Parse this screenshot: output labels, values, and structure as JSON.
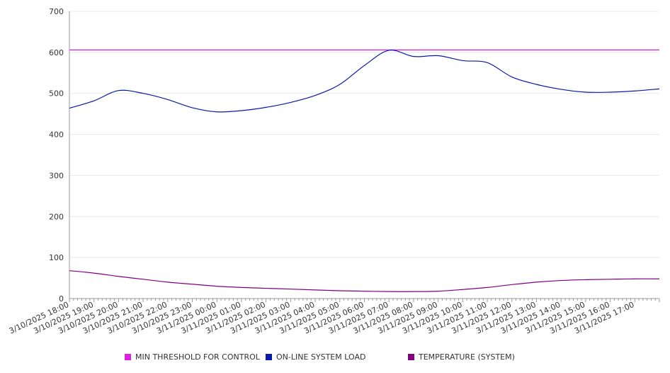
{
  "chart_data": {
    "type": "line",
    "title": "",
    "xlabel": "",
    "ylabel": "",
    "ylim": [
      0,
      700
    ],
    "y_ticks": [
      0,
      100,
      200,
      300,
      400,
      500,
      600,
      700
    ],
    "x_range": [
      "3/10/2025 18:00",
      "3/11/2025 18:00"
    ],
    "x_tick_labels": [
      "3/10/2025 18:00",
      "3/10/2025 19:00",
      "3/10/2025 20:00",
      "3/10/2025 21:00",
      "3/10/2025 22:00",
      "3/10/2025 23:00",
      "3/11/2025 00:00",
      "3/11/2025 01:00",
      "3/11/2025 02:00",
      "3/11/2025 03:00",
      "3/11/2025 04:00",
      "3/11/2025 05:00",
      "3/11/2025 06:00",
      "3/11/2025 07:00",
      "3/11/2025 08:00",
      "3/11/2025 09:00",
      "3/11/2025 10:00",
      "3/11/2025 11:00",
      "3/11/2025 12:00",
      "3/11/2025 13:00",
      "3/11/2025 14:00",
      "3/11/2025 15:00",
      "3/11/2025 16:00",
      "3/11/2025 17:00"
    ],
    "grid": true,
    "legend_position": "bottom",
    "x": [
      "3/10/2025 18:00",
      "3/10/2025 19:00",
      "3/10/2025 20:00",
      "3/10/2025 21:00",
      "3/10/2025 22:00",
      "3/10/2025 23:00",
      "3/11/2025 00:00",
      "3/11/2025 01:00",
      "3/11/2025 02:00",
      "3/11/2025 03:00",
      "3/11/2025 04:00",
      "3/11/2025 05:00",
      "3/11/2025 06:00",
      "3/11/2025 07:00",
      "3/11/2025 08:00",
      "3/11/2025 09:00",
      "3/11/2025 10:00",
      "3/11/2025 11:00",
      "3/11/2025 12:00",
      "3/11/2025 13:00",
      "3/11/2025 14:00",
      "3/11/2025 15:00",
      "3/11/2025 16:00",
      "3/11/2025 17:00",
      "3/11/2025 18:00"
    ],
    "series": [
      {
        "name": "MIN THRESHOLD FOR CONTROL",
        "color": "#e020e0",
        "values": [
          606,
          606,
          606,
          606,
          606,
          606,
          606,
          606,
          606,
          606,
          606,
          606,
          606,
          606,
          606,
          606,
          606,
          606,
          606,
          606,
          606,
          606,
          606,
          606,
          606
        ]
      },
      {
        "name": "ON-LINE SYSTEM LOAD",
        "color": "#0a1aa8",
        "values": [
          464,
          482,
          507,
          500,
          485,
          465,
          455,
          458,
          466,
          478,
          495,
          522,
          568,
          605,
          590,
          592,
          580,
          575,
          540,
          522,
          510,
          503,
          503,
          506,
          511
        ]
      },
      {
        "name": "TEMPERATURE (SYSTEM)",
        "color": "#800080",
        "values": [
          68,
          62,
          54,
          47,
          40,
          35,
          30,
          27,
          25,
          23,
          21,
          19,
          18,
          17,
          17,
          18,
          22,
          27,
          34,
          40,
          44,
          46,
          47,
          48,
          48
        ]
      }
    ]
  }
}
